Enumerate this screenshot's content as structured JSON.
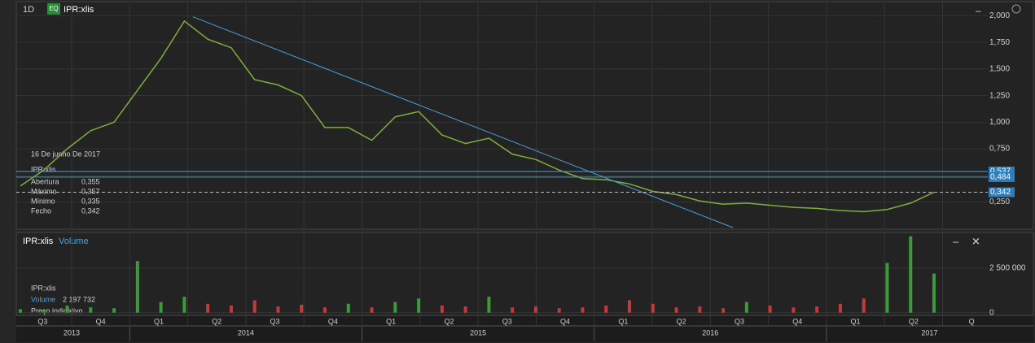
{
  "ui": {
    "interval": "1D",
    "badge": "EQ",
    "symbol": "IPR:xlis",
    "info": {
      "date": "16 De junho De 2017",
      "symbol": "IPR:xlis",
      "rows": [
        [
          "Abertura",
          "0,355"
        ],
        [
          "Máximo",
          "0,357"
        ],
        [
          "Mínimo",
          "0,335"
        ],
        [
          "Fecho",
          "0,342"
        ]
      ]
    },
    "volume_header": {
      "symbol": "IPR:xlis",
      "study": "Volume"
    },
    "volume_info": {
      "symbol": "IPR:xlis",
      "name": "Volume",
      "value": "2 197 732",
      "note": "Preço indicativo"
    },
    "quarters": [
      "Q3",
      "Q4",
      "Q1",
      "Q2",
      "Q3",
      "Q4",
      "Q1",
      "Q2",
      "Q3",
      "Q4",
      "Q1",
      "Q2",
      "Q3",
      "Q4",
      "Q1",
      "Q2",
      "Q"
    ],
    "years": [
      "2013",
      "2014",
      "2015",
      "2016",
      "2017"
    ]
  },
  "chart_data": [
    {
      "type": "line",
      "name": "IPR:xlis",
      "color": "#7fae3e",
      "values": [
        0.4,
        0.55,
        0.75,
        0.92,
        1.0,
        1.3,
        1.6,
        1.95,
        1.78,
        1.7,
        1.4,
        1.35,
        1.25,
        0.95,
        0.95,
        0.83,
        1.05,
        1.1,
        0.88,
        0.8,
        0.85,
        0.7,
        0.65,
        0.55,
        0.47,
        0.46,
        0.42,
        0.35,
        0.32,
        0.26,
        0.23,
        0.24,
        0.22,
        0.2,
        0.19,
        0.17,
        0.16,
        0.18,
        0.24,
        0.342
      ],
      "ylim": [
        0.01,
        2.11
      ],
      "yticks": [
        {
          "value": 2,
          "label": "2,000"
        },
        {
          "value": 1.75,
          "label": "1,750"
        },
        {
          "value": 1.5,
          "label": "1,500"
        },
        {
          "value": 1.25,
          "label": "1,250"
        },
        {
          "value": 1,
          "label": "1,000"
        },
        {
          "value": 0.75,
          "label": "0,750"
        },
        {
          "value": 0.5,
          "label": "0,500"
        },
        {
          "value": 0.25,
          "label": "0,250"
        }
      ],
      "trendline": [
        1.99,
        0.01
      ],
      "levels": [
        {
          "value": 0.537,
          "label": "0,537"
        },
        {
          "value": 0.484,
          "label": "0,484"
        },
        {
          "value": 0.342,
          "label": "0,342",
          "style": "dashed"
        }
      ],
      "grid": true
    },
    {
      "type": "bar",
      "name": "Volume",
      "color": "#3c9a3c",
      "values": [
        200000,
        150000,
        400000,
        300000,
        250000,
        2900000,
        600000,
        900000,
        500000,
        400000,
        700000,
        350000,
        450000,
        300000,
        500000,
        300000,
        600000,
        800000,
        400000,
        350000,
        900000,
        300000,
        350000,
        250000,
        300000,
        400000,
        700000,
        500000,
        300000,
        350000,
        250000,
        600000,
        400000,
        300000,
        350000,
        500000,
        800000,
        2800000,
        4300000,
        2197732
      ],
      "ylim": [
        -150000,
        4330000
      ],
      "yticks": [
        {
          "value": 2500000,
          "label": "2 500 000"
        },
        0
      ],
      "grid": true
    }
  ]
}
